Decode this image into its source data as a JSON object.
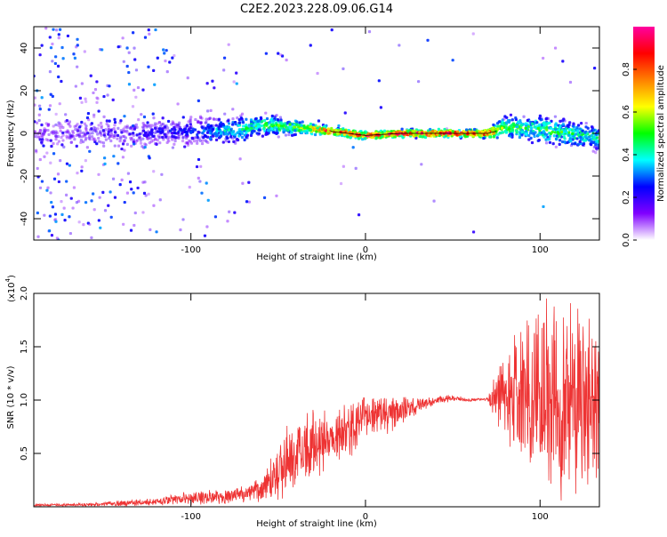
{
  "title": "C2E2.2023.228.09.06.G14",
  "chart_data": [
    {
      "type": "heatmap",
      "name": "spectrogram",
      "xlabel": "Height of straight line (km)",
      "ylabel": "Frequency (Hz)",
      "xlim": [
        -190,
        134
      ],
      "ylim": [
        -50,
        50
      ],
      "xticks": [
        -100,
        0,
        100
      ],
      "yticks": [
        -40,
        -20,
        0,
        20,
        40
      ],
      "colorbar": {
        "label": "Normalized spectral amplitude",
        "range": [
          0,
          1
        ],
        "ticks": [
          0.0,
          0.2,
          0.4,
          0.6,
          0.8
        ],
        "colors": [
          "#ffffff",
          "#8000ff",
          "#0000ff",
          "#00ffff",
          "#00ff00",
          "#ffff00",
          "#ff8000",
          "#ff0000",
          "#ff00a0"
        ]
      },
      "ridge_frequency_hz": {
        "x": [
          -190,
          -150,
          -100,
          -70,
          -60,
          -40,
          -20,
          -10,
          0,
          20,
          40,
          60,
          70,
          75,
          80,
          100,
          134
        ],
        "y": [
          0,
          0,
          1,
          2,
          4,
          3,
          1,
          0,
          -1,
          0,
          0,
          0,
          0,
          1,
          3,
          2,
          -2
        ]
      },
      "ridge_amplitude": {
        "x": [
          -190,
          -100,
          -70,
          -40,
          -20,
          0,
          40,
          70,
          80,
          134
        ],
        "y": [
          0.15,
          0.25,
          0.45,
          0.55,
          0.85,
          0.9,
          0.95,
          0.9,
          0.5,
          0.45
        ]
      },
      "grid": false,
      "legend": "colorbar-right"
    },
    {
      "type": "line",
      "name": "snr",
      "xlabel": "Height of straight line (km)",
      "ylabel": "SNR (10 * v/v)",
      "multiplier_label": "(x10",
      "multiplier_exp": "4",
      "xlim": [
        -190,
        134
      ],
      "ylim": [
        0,
        20000
      ],
      "xticks": [
        -100,
        0,
        100
      ],
      "yticks": [
        5000,
        10000,
        15000,
        20000
      ],
      "ytick_labels": [
        "0.5",
        "1.0",
        "1.5",
        "2.0"
      ],
      "color": "#ee3333",
      "series": [
        {
          "x": [
            -190,
            -160,
            -120,
            -100,
            -80,
            -60,
            -50,
            -40,
            -30,
            -20,
            -10,
            0,
            10,
            20,
            30,
            40,
            50,
            60,
            70,
            78,
            85,
            95,
            105,
            115,
            125,
            134
          ],
          "y": [
            150,
            200,
            450,
            800,
            1000,
            1500,
            3500,
            5000,
            6000,
            6500,
            7000,
            8500,
            8500,
            9000,
            9500,
            10000,
            10200,
            10000,
            10100,
            10300,
            10000,
            10000,
            10000,
            10000,
            9500,
            9500
          ],
          "spread": [
            100,
            150,
            400,
            700,
            700,
            1000,
            3000,
            3500,
            3500,
            3000,
            2500,
            2500,
            2000,
            1500,
            800,
            400,
            300,
            150,
            150,
            4000,
            6000,
            8000,
            10000,
            10000,
            9000,
            8000
          ]
        }
      ],
      "grid": false
    }
  ]
}
